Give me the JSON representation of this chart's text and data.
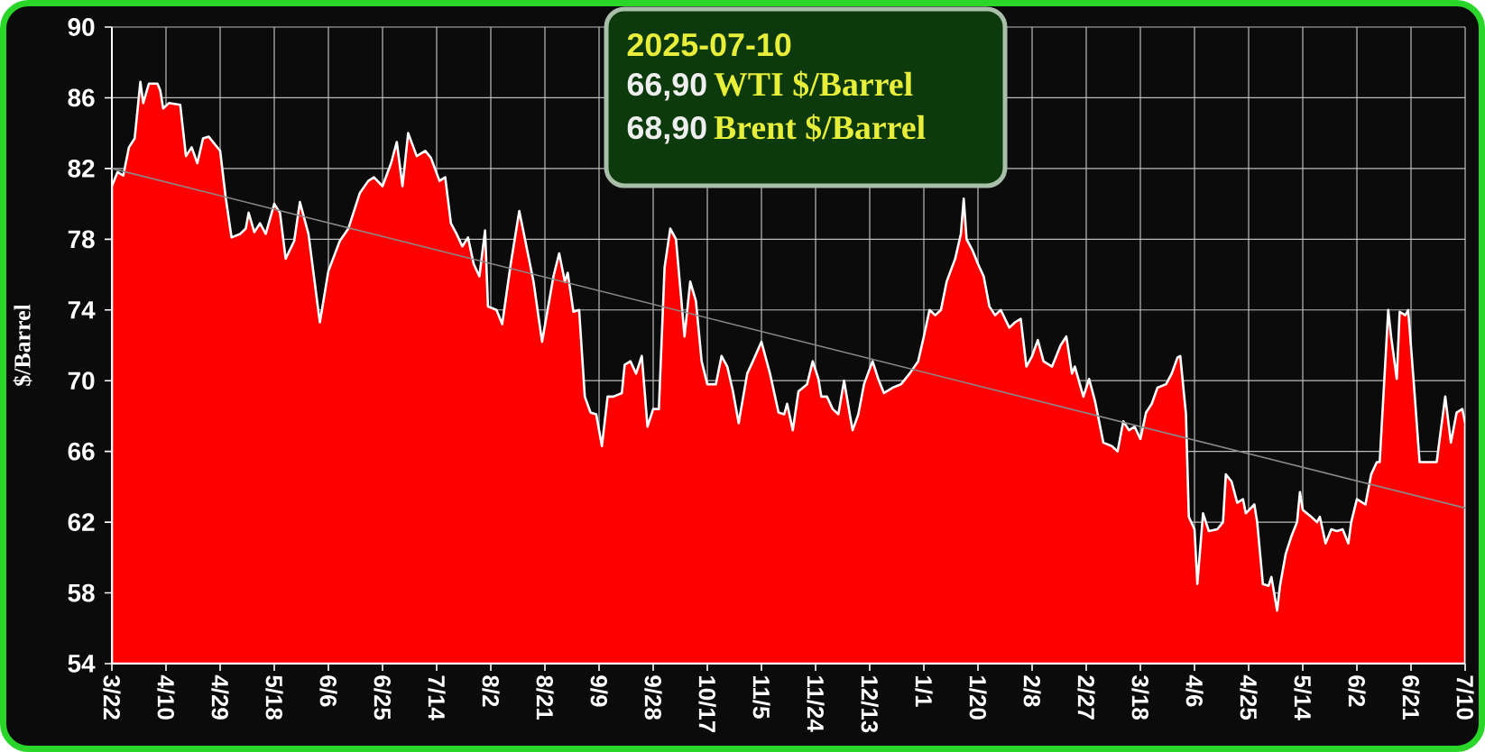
{
  "chart_data": {
    "type": "area",
    "title": "2025-07-10",
    "annotations": [
      "66,90",
      "WTI $/Barrel",
      "68,90",
      "Brent $/Barrel"
    ],
    "ylabel": "$/Barrel",
    "xlim": [
      "2024-03-22",
      "2025-07-10"
    ],
    "xticks": [
      {
        "value": "2024-03-22",
        "label": "3/22"
      },
      {
        "value": "2024-04-10",
        "label": "4/10"
      },
      {
        "value": "2024-04-29",
        "label": "4/29"
      },
      {
        "value": "2024-05-18",
        "label": "5/18"
      },
      {
        "value": "2024-06-06",
        "label": "6/6"
      },
      {
        "value": "2024-06-25",
        "label": "6/25"
      },
      {
        "value": "2024-07-14",
        "label": "7/14"
      },
      {
        "value": "2024-08-02",
        "label": "8/2"
      },
      {
        "value": "2024-08-21",
        "label": "8/21"
      },
      {
        "value": "2024-09-09",
        "label": "9/9"
      },
      {
        "value": "2024-09-28",
        "label": "9/28"
      },
      {
        "value": "2024-10-17",
        "label": "10/17"
      },
      {
        "value": "2024-11-05",
        "label": "11/5"
      },
      {
        "value": "2024-11-24",
        "label": "11/24"
      },
      {
        "value": "2024-12-13",
        "label": "12/13"
      },
      {
        "value": "2025-01-01",
        "label": "1/1"
      },
      {
        "value": "2025-01-20",
        "label": "1/20"
      },
      {
        "value": "2025-02-08",
        "label": "2/8"
      },
      {
        "value": "2025-02-27",
        "label": "2/27"
      },
      {
        "value": "2025-03-18",
        "label": "3/18"
      },
      {
        "value": "2025-04-06",
        "label": "4/6"
      },
      {
        "value": "2025-04-25",
        "label": "4/25"
      },
      {
        "value": "2025-05-14",
        "label": "5/14"
      },
      {
        "value": "2025-06-02",
        "label": "6/2"
      },
      {
        "value": "2025-06-21",
        "label": "6/21"
      },
      {
        "value": "2025-07-10",
        "label": "7/10"
      }
    ],
    "ylim": [
      54,
      90
    ],
    "yticks": [
      54,
      58,
      62,
      66,
      70,
      74,
      78,
      82,
      86,
      90
    ],
    "grid": true,
    "series": [
      {
        "color": "#ff0000",
        "x": [
          "2024-03-22",
          "2024-03-24",
          "2024-03-26",
          "2024-03-28",
          "2024-03-30",
          "2024-04-01",
          "2024-04-02",
          "2024-04-04",
          "2024-04-07",
          "2024-04-08",
          "2024-04-09",
          "2024-04-11",
          "2024-04-15",
          "2024-04-17",
          "2024-04-19",
          "2024-04-21",
          "2024-04-23",
          "2024-04-25",
          "2024-04-29",
          "2024-05-01",
          "2024-05-03",
          "2024-05-06",
          "2024-05-08",
          "2024-05-09",
          "2024-05-11",
          "2024-05-13",
          "2024-05-15",
          "2024-05-18",
          "2024-05-20",
          "2024-05-22",
          "2024-05-25",
          "2024-05-27",
          "2024-05-30",
          "2024-06-03",
          "2024-06-06",
          "2024-06-10",
          "2024-06-13",
          "2024-06-17",
          "2024-06-20",
          "2024-06-22",
          "2024-06-25",
          "2024-06-28",
          "2024-06-30",
          "2024-07-02",
          "2024-07-04",
          "2024-07-07",
          "2024-07-10",
          "2024-07-12",
          "2024-07-15",
          "2024-07-17",
          "2024-07-19",
          "2024-07-21",
          "2024-07-23",
          "2024-07-25",
          "2024-07-27",
          "2024-07-29",
          "2024-07-31",
          "2024-08-01",
          "2024-08-04",
          "2024-08-06",
          "2024-08-09",
          "2024-08-12",
          "2024-08-14",
          "2024-08-17",
          "2024-08-20",
          "2024-08-24",
          "2024-08-26",
          "2024-08-28",
          "2024-08-29",
          "2024-08-31",
          "2024-09-02",
          "2024-09-04",
          "2024-09-06",
          "2024-09-08",
          "2024-09-10",
          "2024-09-12",
          "2024-09-14",
          "2024-09-17",
          "2024-09-18",
          "2024-09-20",
          "2024-09-22",
          "2024-09-24",
          "2024-09-26",
          "2024-09-28",
          "2024-09-30",
          "2024-10-02",
          "2024-10-04",
          "2024-10-06",
          "2024-10-09",
          "2024-10-11",
          "2024-10-13",
          "2024-10-15",
          "2024-10-17",
          "2024-10-20",
          "2024-10-22",
          "2024-10-24",
          "2024-10-26",
          "2024-10-28",
          "2024-10-31",
          "2024-11-02",
          "2024-11-05",
          "2024-11-08",
          "2024-11-11",
          "2024-11-13",
          "2024-11-14",
          "2024-11-16",
          "2024-11-18",
          "2024-11-21",
          "2024-11-23",
          "2024-11-25",
          "2024-11-26",
          "2024-11-28",
          "2024-11-30",
          "2024-12-02",
          "2024-12-04",
          "2024-12-06",
          "2024-12-07",
          "2024-12-09",
          "2024-12-11",
          "2024-12-14",
          "2024-12-16",
          "2024-12-18",
          "2024-12-21",
          "2024-12-24",
          "2024-12-27",
          "2024-12-30",
          "2025-01-01",
          "2025-01-03",
          "2025-01-05",
          "2025-01-07",
          "2025-01-09",
          "2025-01-12",
          "2025-01-14",
          "2025-01-15",
          "2025-01-16",
          "2025-01-18",
          "2025-01-20",
          "2025-01-22",
          "2025-01-24",
          "2025-01-26",
          "2025-01-28",
          "2025-01-31",
          "2025-02-02",
          "2025-02-04",
          "2025-02-06",
          "2025-02-08",
          "2025-02-10",
          "2025-02-12",
          "2025-02-15",
          "2025-02-18",
          "2025-02-20",
          "2025-02-22",
          "2025-02-23",
          "2025-02-26",
          "2025-02-28",
          "2025-03-02",
          "2025-03-05",
          "2025-03-08",
          "2025-03-10",
          "2025-03-12",
          "2025-03-14",
          "2025-03-16",
          "2025-03-18",
          "2025-03-20",
          "2025-03-22",
          "2025-03-24",
          "2025-03-27",
          "2025-03-29",
          "2025-03-31",
          "2025-04-01",
          "2025-04-03",
          "2025-04-04",
          "2025-04-06",
          "2025-04-07",
          "2025-04-09",
          "2025-04-11",
          "2025-04-14",
          "2025-04-16",
          "2025-04-17",
          "2025-04-19",
          "2025-04-21",
          "2025-04-23",
          "2025-04-24",
          "2025-04-27",
          "2025-04-28",
          "2025-04-30",
          "2025-05-02",
          "2025-05-03",
          "2025-05-05",
          "2025-05-06",
          "2025-05-08",
          "2025-05-10",
          "2025-05-12",
          "2025-05-13",
          "2025-05-14",
          "2025-05-17",
          "2025-05-19",
          "2025-05-20",
          "2025-05-22",
          "2025-05-24",
          "2025-05-26",
          "2025-05-28",
          "2025-05-30",
          "2025-05-31",
          "2025-06-02",
          "2025-06-05",
          "2025-06-07",
          "2025-06-09",
          "2025-06-10",
          "2025-06-13",
          "2025-06-14",
          "2025-06-16",
          "2025-06-17",
          "2025-06-19",
          "2025-06-20",
          "2025-06-22",
          "2025-06-24",
          "2025-06-27",
          "2025-06-30",
          "2025-07-03",
          "2025-07-05",
          "2025-07-07",
          "2025-07-09",
          "2025-07-10"
        ],
        "values": [
          81.0,
          81.8,
          81.6,
          83.2,
          83.7,
          86.9,
          85.7,
          86.8,
          86.8,
          86.4,
          85.4,
          85.7,
          85.6,
          82.7,
          83.2,
          82.3,
          83.7,
          83.8,
          83.0,
          80.3,
          78.1,
          78.3,
          78.6,
          79.5,
          78.4,
          78.9,
          78.3,
          80.0,
          79.5,
          76.9,
          77.9,
          80.1,
          78.3,
          73.3,
          76.2,
          77.9,
          78.6,
          80.6,
          81.3,
          81.5,
          81.0,
          82.3,
          83.5,
          81.0,
          84.0,
          82.7,
          83.0,
          82.6,
          81.3,
          81.5,
          78.9,
          78.3,
          77.6,
          78.1,
          76.6,
          75.9,
          78.5,
          74.2,
          74.0,
          73.2,
          76.6,
          79.6,
          78.0,
          75.6,
          72.2,
          75.9,
          77.2,
          75.6,
          76.1,
          73.9,
          74.0,
          69.1,
          68.2,
          68.1,
          66.3,
          69.1,
          69.1,
          69.3,
          70.9,
          71.1,
          70.4,
          71.4,
          67.4,
          68.4,
          68.4,
          76.4,
          78.6,
          78.0,
          72.5,
          75.6,
          74.5,
          71.1,
          69.8,
          69.8,
          71.4,
          70.8,
          69.4,
          67.6,
          70.4,
          71.1,
          72.2,
          70.4,
          68.2,
          68.1,
          68.7,
          67.2,
          69.4,
          69.8,
          71.1,
          70.1,
          69.1,
          69.1,
          68.4,
          68.1,
          70.0,
          68.1,
          67.2,
          68.1,
          69.8,
          71.1,
          70.1,
          69.3,
          69.6,
          69.8,
          70.4,
          71.1,
          72.5,
          74.0,
          73.7,
          74.0,
          75.6,
          76.9,
          78.3,
          80.3,
          78.0,
          77.4,
          76.6,
          75.9,
          74.2,
          73.7,
          74.0,
          73.0,
          73.3,
          73.5,
          70.8,
          71.4,
          72.3,
          71.1,
          70.8,
          72.0,
          72.5,
          70.4,
          70.8,
          69.1,
          70.1,
          68.9,
          66.5,
          66.3,
          66.0,
          67.7,
          67.2,
          67.4,
          66.7,
          68.2,
          68.7,
          69.6,
          69.8,
          70.4,
          71.3,
          71.4,
          68.1,
          62.3,
          61.6,
          58.5,
          62.5,
          61.5,
          61.6,
          62.0,
          64.7,
          64.3,
          63.1,
          63.3,
          62.5,
          63.0,
          62.0,
          58.5,
          58.4,
          58.9,
          57.0,
          58.4,
          60.2,
          61.2,
          62.0,
          63.7,
          62.7,
          62.3,
          62.0,
          62.3,
          60.8,
          61.6,
          61.5,
          61.6,
          60.8,
          62.0,
          63.3,
          63.0,
          64.7,
          65.4,
          65.4,
          74.0,
          72.5,
          70.1,
          73.9,
          73.7,
          74.0,
          69.8,
          65.4,
          65.4,
          65.4,
          69.1,
          66.5,
          68.2,
          68.4,
          67.6
        ]
      },
      {
        "type": "line",
        "color": "#8a8a8a",
        "x": [
          "2024-03-22",
          "2025-07-10"
        ],
        "values": [
          82.0,
          62.8
        ]
      }
    ]
  }
}
